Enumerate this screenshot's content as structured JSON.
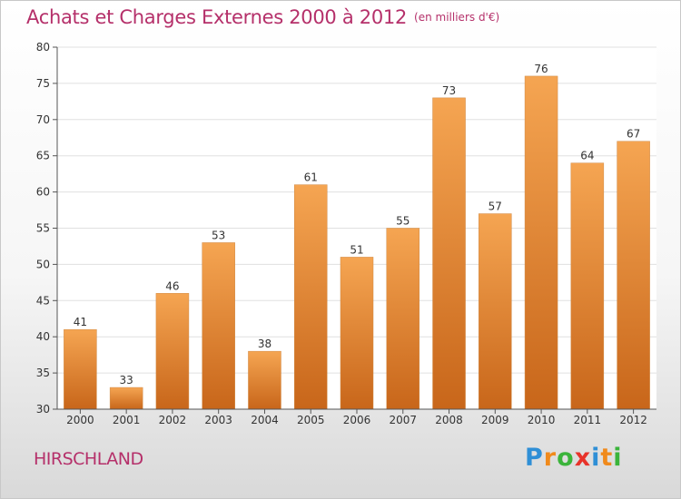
{
  "header": {
    "title": "Achats et Charges Externes 2000 à 2012",
    "unit": "(en milliers d'€)"
  },
  "footer": {
    "place": "HIRSCHLAND",
    "logo": [
      "P",
      "r",
      "o",
      "x",
      "i",
      "t",
      "i"
    ],
    "logo_colors": [
      "#2f8fd6",
      "#f08a1c",
      "#3bb43b",
      "#e8332a",
      "#2f8fd6",
      "#f08a1c",
      "#3bb43b"
    ]
  },
  "colors": {
    "bar_top": "#f5a552",
    "bar_bottom": "#c8661a",
    "grid": "#e0e0e0",
    "axis": "#555555"
  },
  "chart_data": {
    "type": "bar",
    "categories": [
      "2000",
      "2001",
      "2002",
      "2003",
      "2004",
      "2005",
      "2006",
      "2007",
      "2008",
      "2009",
      "2010",
      "2011",
      "2012"
    ],
    "values": [
      41,
      33,
      46,
      53,
      38,
      61,
      51,
      55,
      73,
      57,
      76,
      64,
      67
    ],
    "title": "Achats et Charges Externes 2000 à 2012",
    "ylim": [
      30,
      80
    ],
    "yticks": [
      30,
      35,
      40,
      45,
      50,
      55,
      60,
      65,
      70,
      75,
      80
    ],
    "grid": true,
    "legend": false
  }
}
